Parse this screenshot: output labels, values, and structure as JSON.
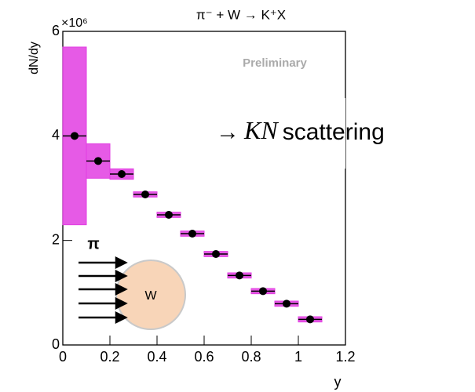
{
  "chart_data": {
    "type": "scatter",
    "title": "π⁻ + W → K⁺X",
    "y_label": "dN/dy",
    "x_label": "y",
    "y_scale_label": "×10⁶",
    "watermark": "Preliminary",
    "callout": {
      "arrow": "→",
      "italic": "KN",
      "text": "scattering"
    },
    "inset": {
      "beam_label": "π",
      "target_label": "W"
    },
    "x": [
      0.05,
      0.15,
      0.25,
      0.35,
      0.45,
      0.55,
      0.65,
      0.75,
      0.85,
      0.95,
      1.05
    ],
    "x_errors": [
      0.05,
      0.05,
      0.05,
      0.05,
      0.05,
      0.05,
      0.05,
      0.05,
      0.05,
      0.05,
      0.05
    ],
    "values": [
      4.0,
      3.52,
      3.27,
      2.88,
      2.49,
      2.13,
      1.74,
      1.33,
      1.03,
      0.79,
      0.49
    ],
    "sys_errors": [
      1.7,
      0.33,
      0.1,
      0.05,
      0.05,
      0.05,
      0.05,
      0.05,
      0.05,
      0.05,
      0.05
    ],
    "color": "#000000",
    "sys_color": "#e23de2",
    "xlim": [
      0,
      1.2
    ],
    "ylim": [
      0,
      6
    ],
    "xticks": [
      0,
      0.2,
      0.4,
      0.6,
      0.8,
      1,
      1.2
    ],
    "yticks": [
      0,
      2,
      4,
      6
    ]
  }
}
